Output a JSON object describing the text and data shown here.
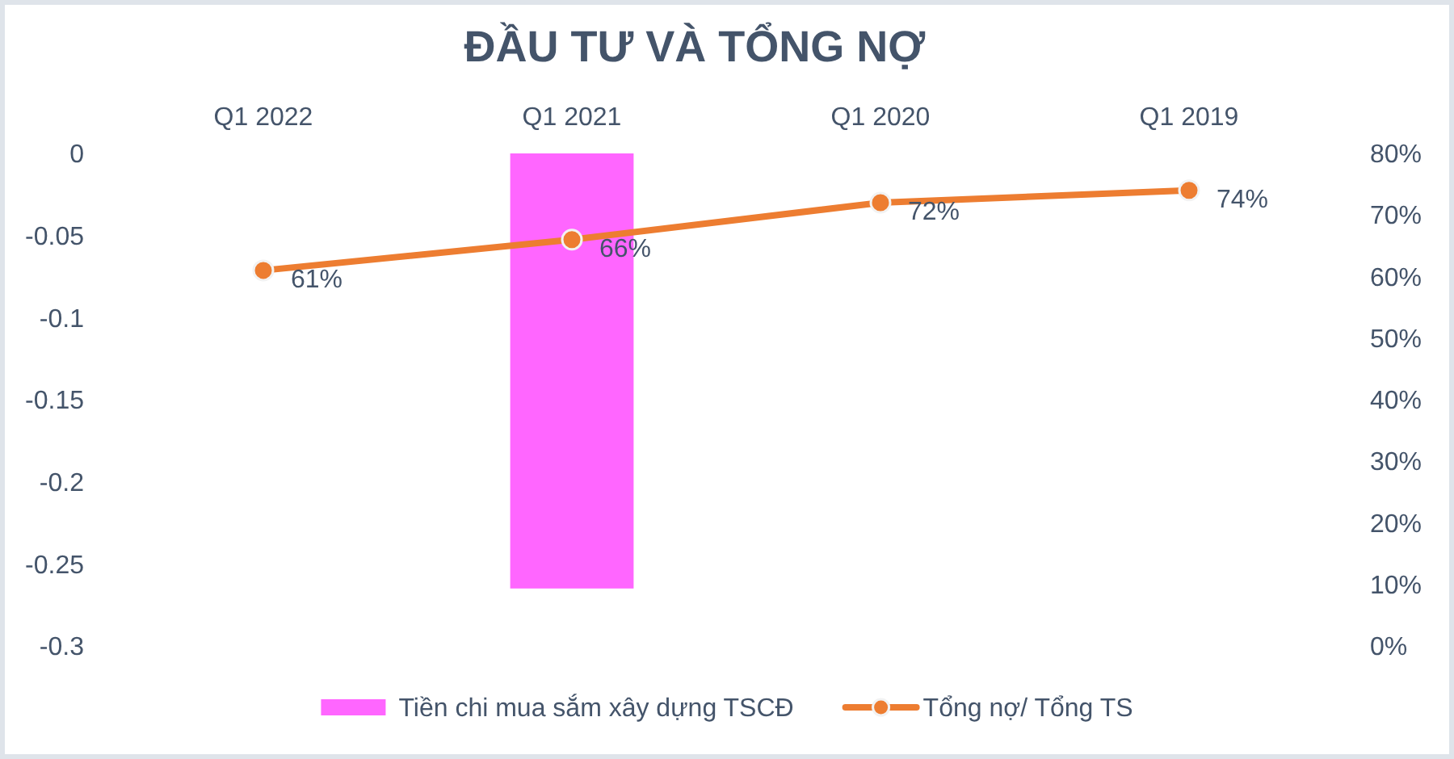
{
  "chart_data": {
    "type": "bar",
    "title": "ĐẦU TƯ VÀ TỔNG NỢ",
    "categories": [
      "Q1 2022",
      "Q1 2021",
      "Q1 2020",
      "Q1 2019"
    ],
    "series": [
      {
        "name": "Tiền chi mua sắm xây dựng TSCĐ",
        "color": "#ff66ff",
        "values": [
          null,
          -0.265,
          null,
          null
        ]
      },
      {
        "name": "Tổng nợ/ Tổng TS",
        "type": "line",
        "axis": "y2",
        "color": "#ed7d31",
        "values": [
          61,
          66,
          72,
          74
        ],
        "value_labels": [
          "61%",
          "66%",
          "72%",
          "74%"
        ]
      }
    ],
    "ylim": [
      -0.3,
      0
    ],
    "yticks": [
      0,
      -0.05,
      -0.1,
      -0.15,
      -0.2,
      -0.25,
      -0.3
    ],
    "y2lim": [
      0,
      80
    ],
    "y2ticks": [
      {
        "value": 0,
        "label": "0%"
      },
      {
        "value": 10,
        "label": "10%"
      },
      {
        "value": 20,
        "label": "20%"
      },
      {
        "value": 30,
        "label": "30%"
      },
      {
        "value": 40,
        "label": "40%"
      },
      {
        "value": 50,
        "label": "50%"
      },
      {
        "value": 60,
        "label": "60%"
      },
      {
        "value": 70,
        "label": "70%"
      },
      {
        "value": 80,
        "label": "80%"
      }
    ],
    "legend": "bottom",
    "grid": false,
    "marker": "circle"
  }
}
